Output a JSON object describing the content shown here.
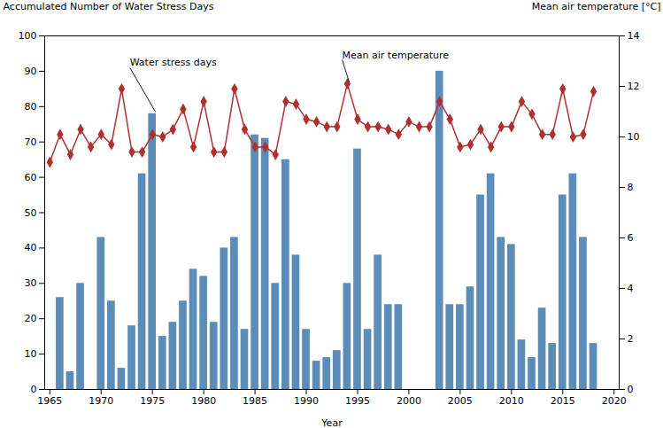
{
  "chart_data": {
    "type": "bar",
    "xlabel": "Year",
    "ylabel": "Accumulated Number of Water Stress Days",
    "y2label": "Mean air temperature [°C]",
    "x": [
      1965,
      1966,
      1967,
      1968,
      1969,
      1970,
      1971,
      1972,
      1973,
      1974,
      1975,
      1976,
      1977,
      1978,
      1979,
      1980,
      1981,
      1982,
      1983,
      1984,
      1985,
      1986,
      1987,
      1988,
      1989,
      1990,
      1991,
      1992,
      1993,
      1994,
      1995,
      1996,
      1997,
      1998,
      1999,
      2000,
      2001,
      2002,
      2003,
      2004,
      2005,
      2006,
      2007,
      2008,
      2009,
      2010,
      2011,
      2012,
      2013,
      2014,
      2015,
      2016,
      2017,
      2018
    ],
    "xlim": [
      1964.5,
      2020.5
    ],
    "xticks": [
      1965,
      1970,
      1975,
      1980,
      1985,
      1990,
      1995,
      2000,
      2005,
      2010,
      2015,
      2020
    ],
    "ylim": [
      0,
      100
    ],
    "yticks": [
      0,
      10,
      20,
      30,
      40,
      50,
      60,
      70,
      80,
      90,
      100
    ],
    "y2lim": [
      0,
      14
    ],
    "y2ticks": [
      0,
      2,
      4,
      6,
      8,
      10,
      12,
      14
    ],
    "series": [
      {
        "type": "bar",
        "axis": "y",
        "color": "#5b8db8",
        "values": [
          0,
          26,
          5,
          30,
          0,
          43,
          25,
          6,
          18,
          61,
          78,
          15,
          19,
          25,
          34,
          32,
          19,
          40,
          43,
          17,
          72,
          71,
          30,
          65,
          38,
          17,
          8,
          9,
          11,
          30,
          68,
          17,
          38,
          24,
          24,
          0,
          0,
          0,
          90,
          24,
          24,
          29,
          55,
          61,
          43,
          41,
          14,
          9,
          23,
          13,
          55,
          61,
          43,
          13
        ]
      },
      {
        "type": "line",
        "axis": "y2",
        "color": "#b03030",
        "marker": "diamond",
        "values": [
          9.0,
          10.1,
          9.3,
          10.3,
          9.6,
          10.1,
          9.7,
          11.9,
          9.4,
          9.4,
          10.1,
          10.0,
          10.3,
          11.1,
          9.6,
          11.4,
          9.4,
          9.4,
          11.9,
          10.3,
          9.6,
          9.6,
          9.3,
          11.4,
          11.3,
          10.7,
          10.6,
          10.4,
          10.4,
          12.1,
          10.7,
          10.4,
          10.4,
          10.3,
          10.1,
          10.6,
          10.4,
          10.4,
          11.4,
          10.7,
          9.6,
          9.7,
          10.3,
          9.6,
          10.4,
          10.4,
          11.4,
          10.9,
          10.1,
          10.1,
          11.9,
          10.0,
          10.1,
          11.8
        ]
      }
    ],
    "annotations": [
      {
        "text": "Water stress days",
        "axis": "y",
        "x": 1975.3,
        "y": 78.5,
        "text_x": 1972.8,
        "text_y": 91
      },
      {
        "text": "Mean air temperature",
        "axis": "y2",
        "x": 1994.2,
        "y": 12.15,
        "text_x": 1993.5,
        "text_y": 13.05
      }
    ]
  }
}
